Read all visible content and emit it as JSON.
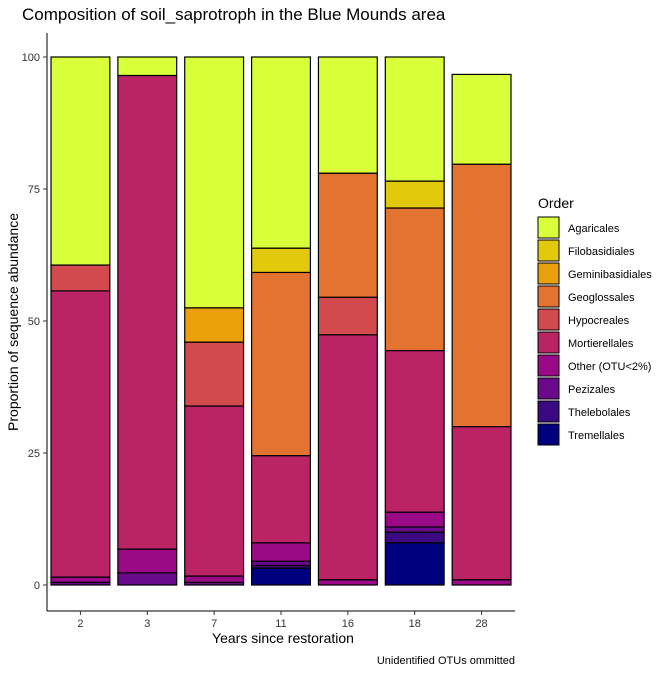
{
  "chart_data": {
    "type": "bar",
    "stacked": true,
    "title": "Composition of soil_saprotroph in the Blue Mounds area",
    "xlabel": "Years since restoration",
    "ylabel": "Proportion of sequence abundance",
    "caption": "Unidentified OTUs ommitted",
    "ylim": [
      0,
      100
    ],
    "yticks": [
      0,
      25,
      50,
      75,
      100
    ],
    "categories": [
      "2",
      "3",
      "7",
      "11",
      "16",
      "18",
      "28"
    ],
    "legend_title": "Order",
    "legend_position": "right",
    "grid": false,
    "series": [
      {
        "name": "Tremellales",
        "color": "#00007f",
        "values": [
          0,
          0,
          0,
          3.2,
          0,
          8.0,
          0
        ]
      },
      {
        "name": "Thelebolales",
        "color": "#3b0a82",
        "values": [
          0,
          0,
          0,
          0.5,
          0,
          2.0,
          0
        ]
      },
      {
        "name": "Pezizales",
        "color": "#6a0a8a",
        "values": [
          0.5,
          2.3,
          0.5,
          0.8,
          0,
          1.0,
          0
        ]
      },
      {
        "name": "Other (OTU<2%)",
        "color": "#9a0a86",
        "values": [
          1.0,
          4.5,
          1.2,
          3.5,
          1.0,
          2.8,
          1.0
        ]
      },
      {
        "name": "Mortierellales",
        "color": "#ba2465",
        "values": [
          54.2,
          89.7,
          32.2,
          16.5,
          46.4,
          30.6,
          29.0
        ]
      },
      {
        "name": "Hypocreales",
        "color": "#d34a4e",
        "values": [
          4.9,
          0,
          12.1,
          0,
          7.1,
          0,
          0
        ]
      },
      {
        "name": "Geoglossales",
        "color": "#e27330",
        "values": [
          0,
          0,
          0,
          34.7,
          23.5,
          27.0,
          49.7
        ]
      },
      {
        "name": "Geminibasidiales",
        "color": "#e9a00a",
        "values": [
          0,
          0,
          6.5,
          0,
          0,
          0,
          0
        ]
      },
      {
        "name": "Filobasidiales",
        "color": "#e3c90b",
        "values": [
          0,
          0,
          0,
          4.6,
          0,
          5.1,
          0
        ]
      },
      {
        "name": "Agaricales",
        "color": "#d9ff3a",
        "values": [
          39.4,
          3.5,
          47.5,
          36.2,
          22.0,
          23.5,
          17.0
        ]
      }
    ],
    "legend_order": [
      "Agaricales",
      "Filobasidiales",
      "Geminibasidiales",
      "Geoglossales",
      "Hypocreales",
      "Mortierellales",
      "Other (OTU<2%)",
      "Pezizales",
      "Thelebolales",
      "Tremellales"
    ]
  }
}
